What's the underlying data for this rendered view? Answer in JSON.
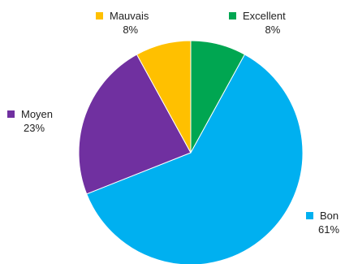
{
  "chart_data": {
    "type": "pie",
    "title": "",
    "start": "top",
    "direction": "clockwise",
    "slices": [
      {
        "label": "Excellent",
        "value": 8,
        "display": "8%",
        "color": "#00a651"
      },
      {
        "label": "Bon",
        "value": 61,
        "display": "61%",
        "color": "#00b0f0"
      },
      {
        "label": "Moyen",
        "value": 23,
        "display": "23%",
        "color": "#7030a0"
      },
      {
        "label": "Mauvais",
        "value": 8,
        "display": "8%",
        "color": "#ffc000"
      }
    ]
  }
}
